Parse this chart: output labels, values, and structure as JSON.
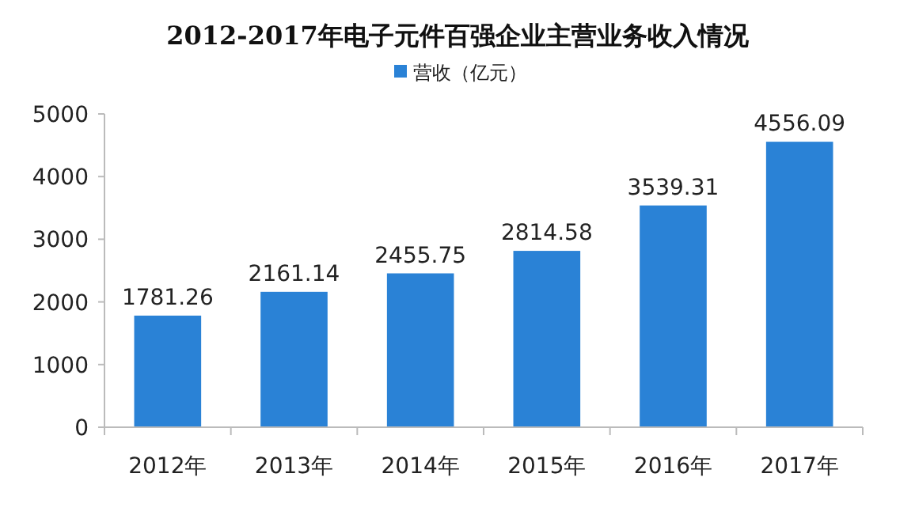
{
  "chart_data": {
    "type": "bar",
    "title": "2012-2017年电子元件百强企业主营业务收入情况",
    "categories": [
      "2012年",
      "2013年",
      "2014年",
      "2015年",
      "2016年",
      "2017年"
    ],
    "series": [
      {
        "name": "营收（亿元）",
        "color": "#2a82d6",
        "values": [
          1781.26,
          2161.14,
          2455.75,
          2814.58,
          3539.31,
          4556.09
        ]
      }
    ],
    "ylim": [
      0,
      5000
    ],
    "yticks": [
      0,
      1000,
      2000,
      3000,
      4000,
      5000
    ],
    "data_labels": true,
    "legend": "top",
    "grid": false
  }
}
